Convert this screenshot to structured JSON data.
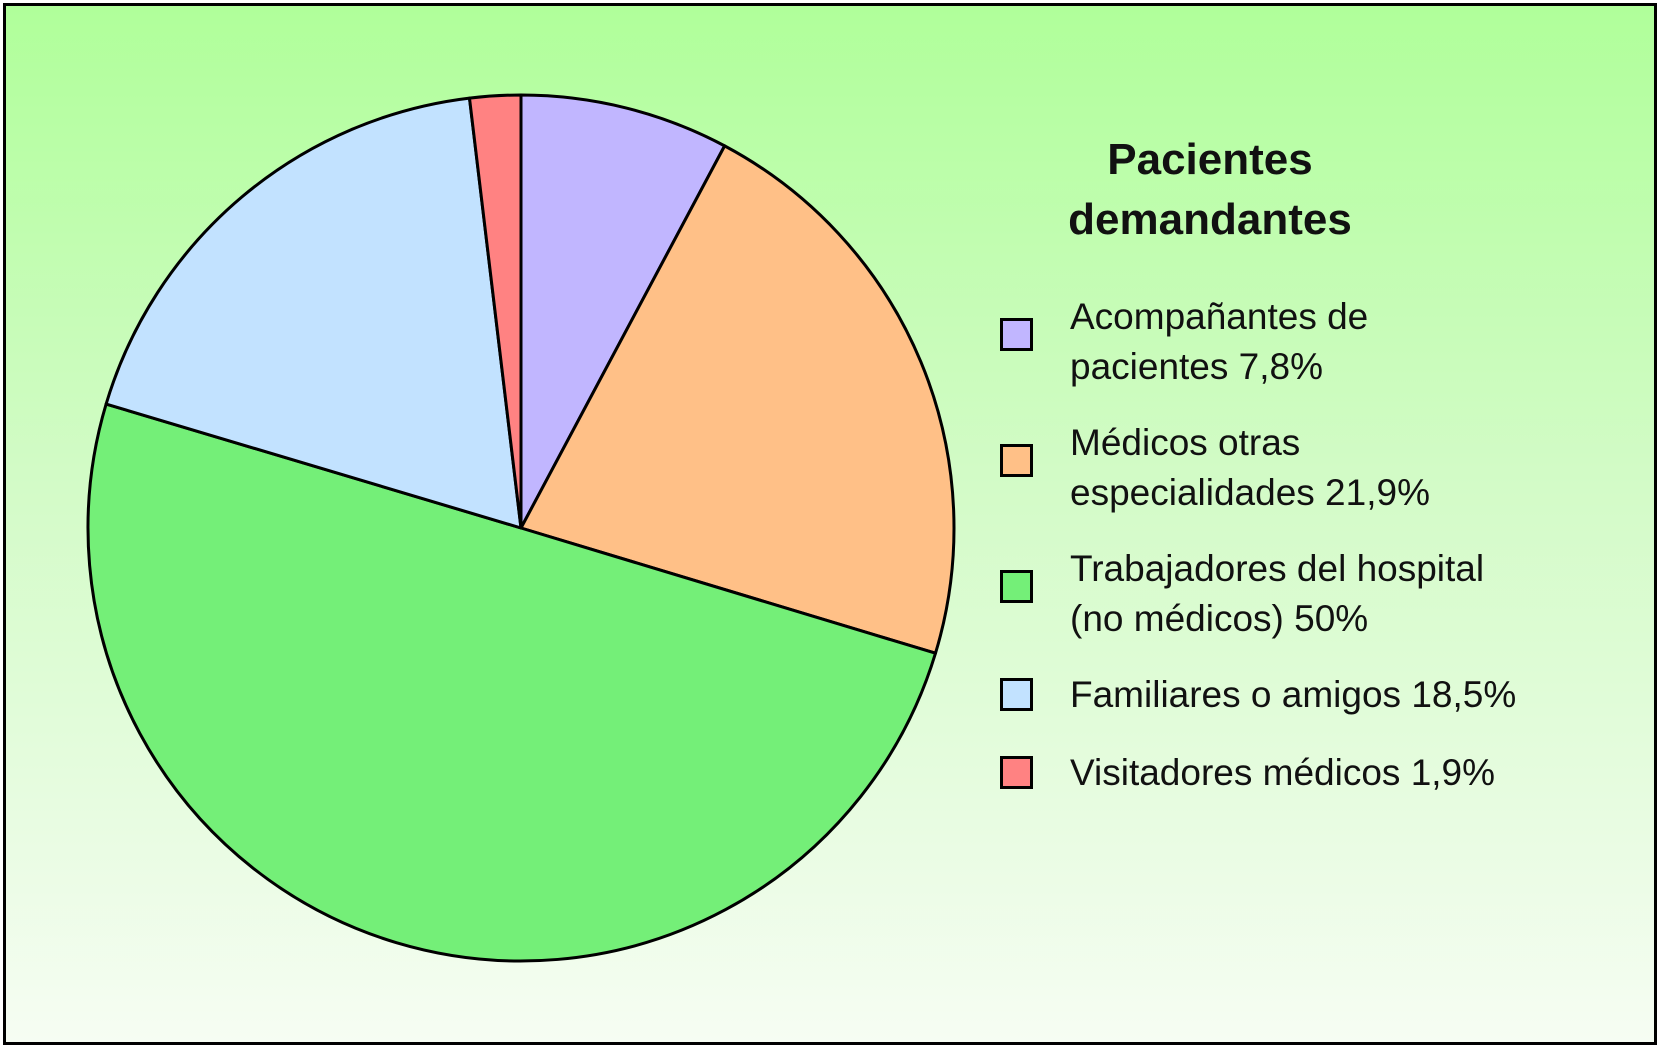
{
  "chart_data": {
    "type": "pie",
    "title": "Pacientes demandantes",
    "legend_position": "right",
    "start_angle_deg": -90,
    "direction": "clockwise",
    "slices": [
      {
        "label": "Acompañantes de pacientes 7,8%",
        "label_lines": [
          "Acompañantes de",
          "pacientes 7,8%"
        ],
        "value": 7.8,
        "color": "#c1b6ff"
      },
      {
        "label": "Médicos otras especialidades 21,9%",
        "label_lines": [
          "Médicos otras",
          "especialidades 21,9%"
        ],
        "value": 21.9,
        "color": "#ffc087"
      },
      {
        "label": "Trabajadores del hospital (no médicos) 50%",
        "label_lines": [
          "Trabajadores del hospital",
          "(no médicos) 50%"
        ],
        "value": 50,
        "color": "#74ef78"
      },
      {
        "label": "Familiares o amigos 18,5%",
        "label_lines": [
          "Familiares o amigos 18,5%"
        ],
        "value": 18.5,
        "color": "#c2e2ff"
      },
      {
        "label": "Visitadores médicos 1,9%",
        "label_lines": [
          "Visitadores médicos 1,9%"
        ],
        "value": 1.9,
        "color": "#ff8282"
      }
    ]
  }
}
